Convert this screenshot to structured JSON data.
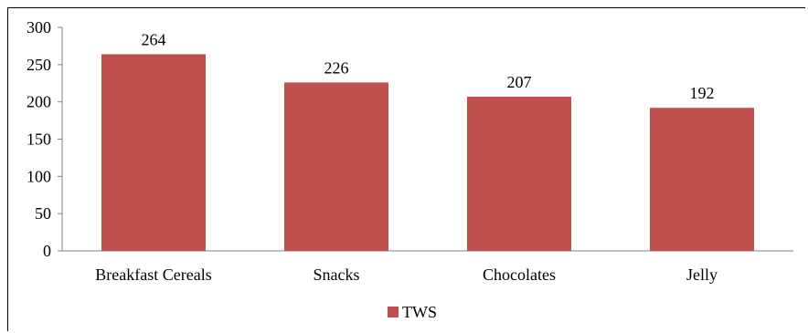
{
  "chart_data": {
    "type": "bar",
    "categories": [
      "Breakfast Cereals",
      "Snacks",
      "Chocolates",
      "Jelly"
    ],
    "series": [
      {
        "name": "TWS",
        "values": [
          264,
          226,
          207,
          192
        ],
        "color": "#c0504d"
      }
    ],
    "y_ticks": [
      0,
      50,
      100,
      150,
      200,
      250,
      300
    ],
    "ylim": [
      0,
      300
    ],
    "title": "",
    "xlabel": "",
    "ylabel": "",
    "grid": false,
    "legend_position": "bottom",
    "data_labels": true
  }
}
